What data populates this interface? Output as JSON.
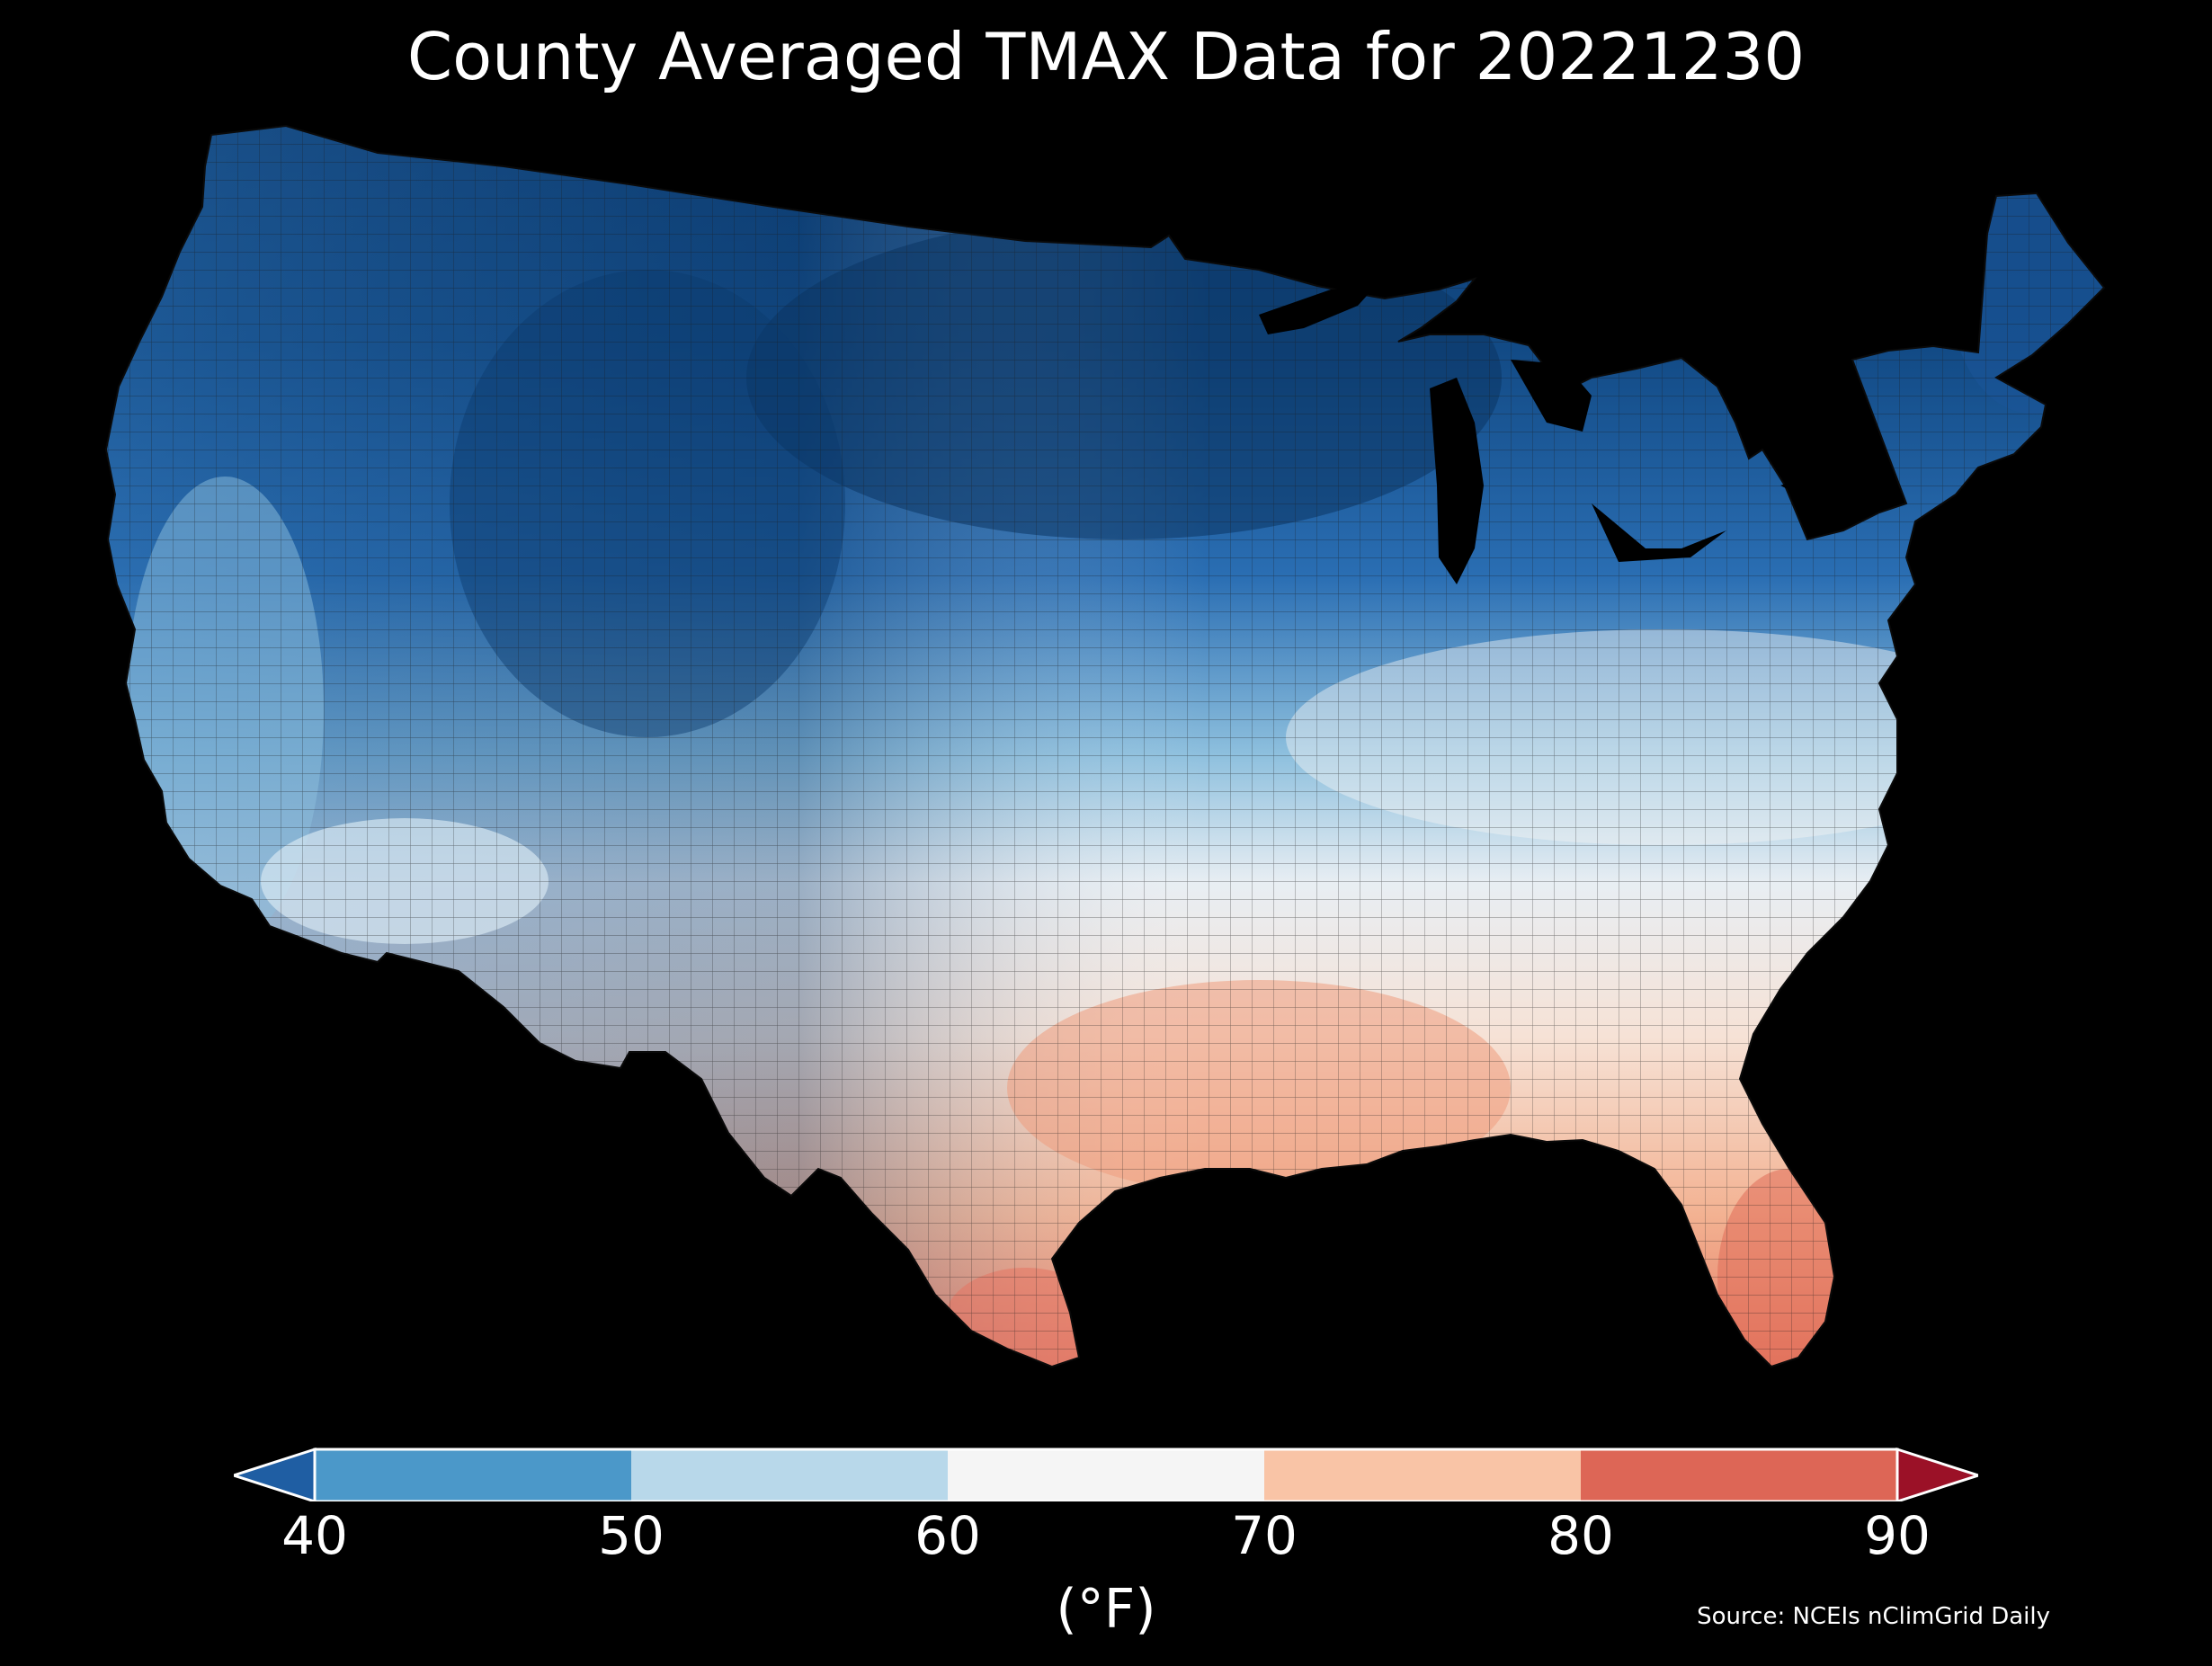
{
  "title": "County Averaged TMAX Data for 20221230",
  "colorbar": {
    "unit_label": "(°F)",
    "ticks": [
      "40",
      "50",
      "60",
      "70",
      "80",
      "90"
    ],
    "bins": [
      {
        "from": 40,
        "to": 50,
        "color": "#4b98c9"
      },
      {
        "from": 50,
        "to": 60,
        "color": "#b8d8ea"
      },
      {
        "from": 60,
        "to": 70,
        "color": "#f5f5f5"
      },
      {
        "from": 70,
        "to": 80,
        "color": "#f9c4a6"
      },
      {
        "from": 80,
        "to": 90,
        "color": "#dd6656"
      }
    ],
    "under_color": "#1f5ea3",
    "over_color": "#9b1127"
  },
  "source": "Source: NCEIs nClimGrid Daily",
  "map": {
    "region": "contiguous-united-states",
    "boundaries": "county",
    "background": "#000000"
  }
}
